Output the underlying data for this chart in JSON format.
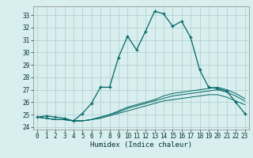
{
  "title": "",
  "xlabel": "Humidex (Indice chaleur)",
  "bg_color": "#d9eeee",
  "grid_color": "#aacccc",
  "line_color": "#006666",
  "xlim": [
    -0.5,
    23.5
  ],
  "ylim": [
    23.8,
    33.7
  ],
  "yticks": [
    24,
    25,
    26,
    27,
    28,
    29,
    30,
    31,
    32,
    33
  ],
  "xticks": [
    0,
    1,
    2,
    3,
    4,
    5,
    6,
    7,
    8,
    9,
    10,
    11,
    12,
    13,
    14,
    15,
    16,
    17,
    18,
    19,
    20,
    21,
    22,
    23
  ],
  "main_line": [
    24.8,
    24.9,
    24.8,
    24.7,
    24.5,
    25.1,
    25.9,
    27.2,
    27.2,
    29.6,
    31.3,
    30.2,
    31.7,
    33.3,
    33.1,
    32.1,
    32.5,
    31.2,
    28.6,
    27.2,
    27.1,
    26.9,
    26.0,
    25.1
  ],
  "line2": [
    24.8,
    24.7,
    24.6,
    24.6,
    24.5,
    24.5,
    24.6,
    24.8,
    25.0,
    25.2,
    25.5,
    25.7,
    25.9,
    26.1,
    26.3,
    26.5,
    26.6,
    26.7,
    26.8,
    26.9,
    27.0,
    26.8,
    26.5,
    26.1
  ],
  "line3": [
    24.8,
    24.7,
    24.6,
    24.6,
    24.5,
    24.5,
    24.6,
    24.8,
    25.0,
    25.3,
    25.6,
    25.8,
    26.0,
    26.2,
    26.5,
    26.7,
    26.8,
    26.9,
    27.0,
    27.1,
    27.2,
    27.0,
    26.7,
    26.3
  ],
  "line4": [
    24.8,
    24.7,
    24.6,
    24.6,
    24.5,
    24.5,
    24.6,
    24.7,
    24.9,
    25.1,
    25.3,
    25.5,
    25.7,
    25.9,
    26.1,
    26.2,
    26.3,
    26.4,
    26.5,
    26.6,
    26.6,
    26.4,
    26.1,
    25.8
  ],
  "tick_fontsize": 5.5,
  "xlabel_fontsize": 6.5
}
